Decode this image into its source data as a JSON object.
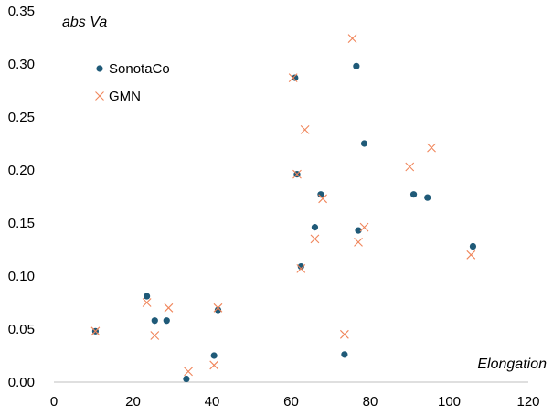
{
  "chart_data": {
    "type": "scatter",
    "xlabel": "Elongation",
    "ylabel": "abs Va",
    "xlim": [
      0,
      120
    ],
    "ylim": [
      0,
      0.35
    ],
    "x_ticks": [
      "0",
      "20",
      "40",
      "60",
      "80",
      "100",
      "120"
    ],
    "y_ticks": [
      "0.00",
      "0.05",
      "0.10",
      "0.15",
      "0.20",
      "0.25",
      "0.30",
      "0.35"
    ],
    "grid": false,
    "legend_position": "top-left",
    "series": [
      {
        "name": "SonotaCo",
        "marker": "circle",
        "color": "#1f5a78",
        "points": [
          [
            10.5,
            0.048
          ],
          [
            23.5,
            0.081
          ],
          [
            25.5,
            0.058
          ],
          [
            28.5,
            0.058
          ],
          [
            33.5,
            0.003
          ],
          [
            40.5,
            0.025
          ],
          [
            41.5,
            0.068
          ],
          [
            61.0,
            0.287
          ],
          [
            61.5,
            0.196
          ],
          [
            62.5,
            0.109
          ],
          [
            66.0,
            0.146
          ],
          [
            67.5,
            0.177
          ],
          [
            73.5,
            0.026
          ],
          [
            76.5,
            0.298
          ],
          [
            77.0,
            0.143
          ],
          [
            78.5,
            0.225
          ],
          [
            91.0,
            0.177
          ],
          [
            94.5,
            0.174
          ],
          [
            106.0,
            0.128
          ]
        ]
      },
      {
        "name": "GMN",
        "marker": "cross",
        "color": "#f0855a",
        "points": [
          [
            10.5,
            0.048
          ],
          [
            23.5,
            0.075
          ],
          [
            25.5,
            0.044
          ],
          [
            29.0,
            0.07
          ],
          [
            34.0,
            0.01
          ],
          [
            40.5,
            0.016
          ],
          [
            41.5,
            0.07
          ],
          [
            60.5,
            0.287
          ],
          [
            61.5,
            0.196
          ],
          [
            62.5,
            0.107
          ],
          [
            63.5,
            0.238
          ],
          [
            66.0,
            0.135
          ],
          [
            68.0,
            0.173
          ],
          [
            73.5,
            0.045
          ],
          [
            75.5,
            0.324
          ],
          [
            77.0,
            0.132
          ],
          [
            78.5,
            0.146
          ],
          [
            90.0,
            0.203
          ],
          [
            95.5,
            0.221
          ],
          [
            105.5,
            0.12
          ]
        ]
      }
    ]
  }
}
